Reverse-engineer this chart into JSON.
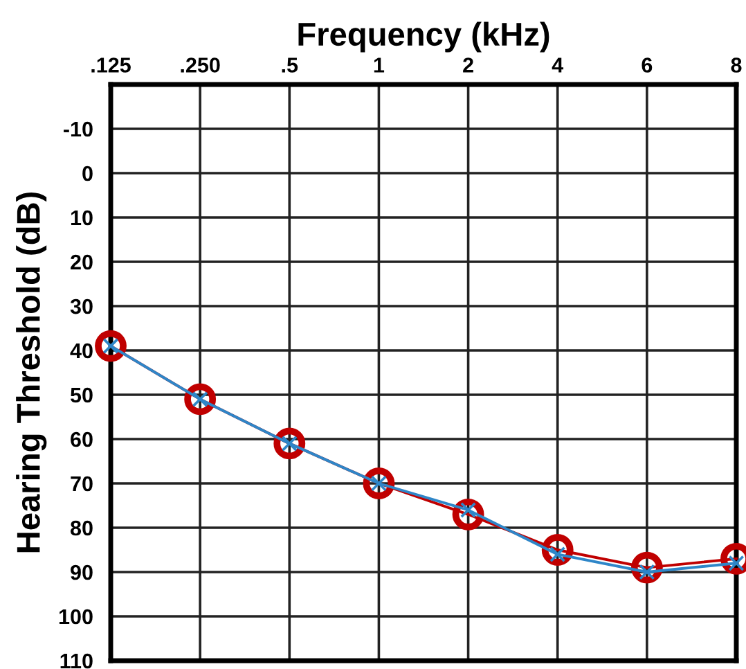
{
  "chart_data": {
    "type": "line",
    "xlabel": "Frequency (kHz)",
    "ylabel": "Hearing Threshold (dB)",
    "categories": [
      ".125",
      ".250",
      ".5",
      "1",
      "2",
      "4",
      "6",
      "8"
    ],
    "ylim": [
      110,
      -20
    ],
    "yticks": [
      -10,
      0,
      10,
      20,
      30,
      40,
      50,
      60,
      70,
      80,
      90,
      100,
      110
    ],
    "grid": true,
    "legend": false,
    "series": [
      {
        "color": "#c00000",
        "marker": "circle",
        "values": [
          39,
          51,
          61,
          70,
          77,
          85,
          89,
          87
        ]
      },
      {
        "color": "#2e86c8",
        "marker": "cross",
        "values": [
          39,
          51,
          61,
          70,
          76,
          86,
          90,
          88
        ]
      }
    ]
  }
}
